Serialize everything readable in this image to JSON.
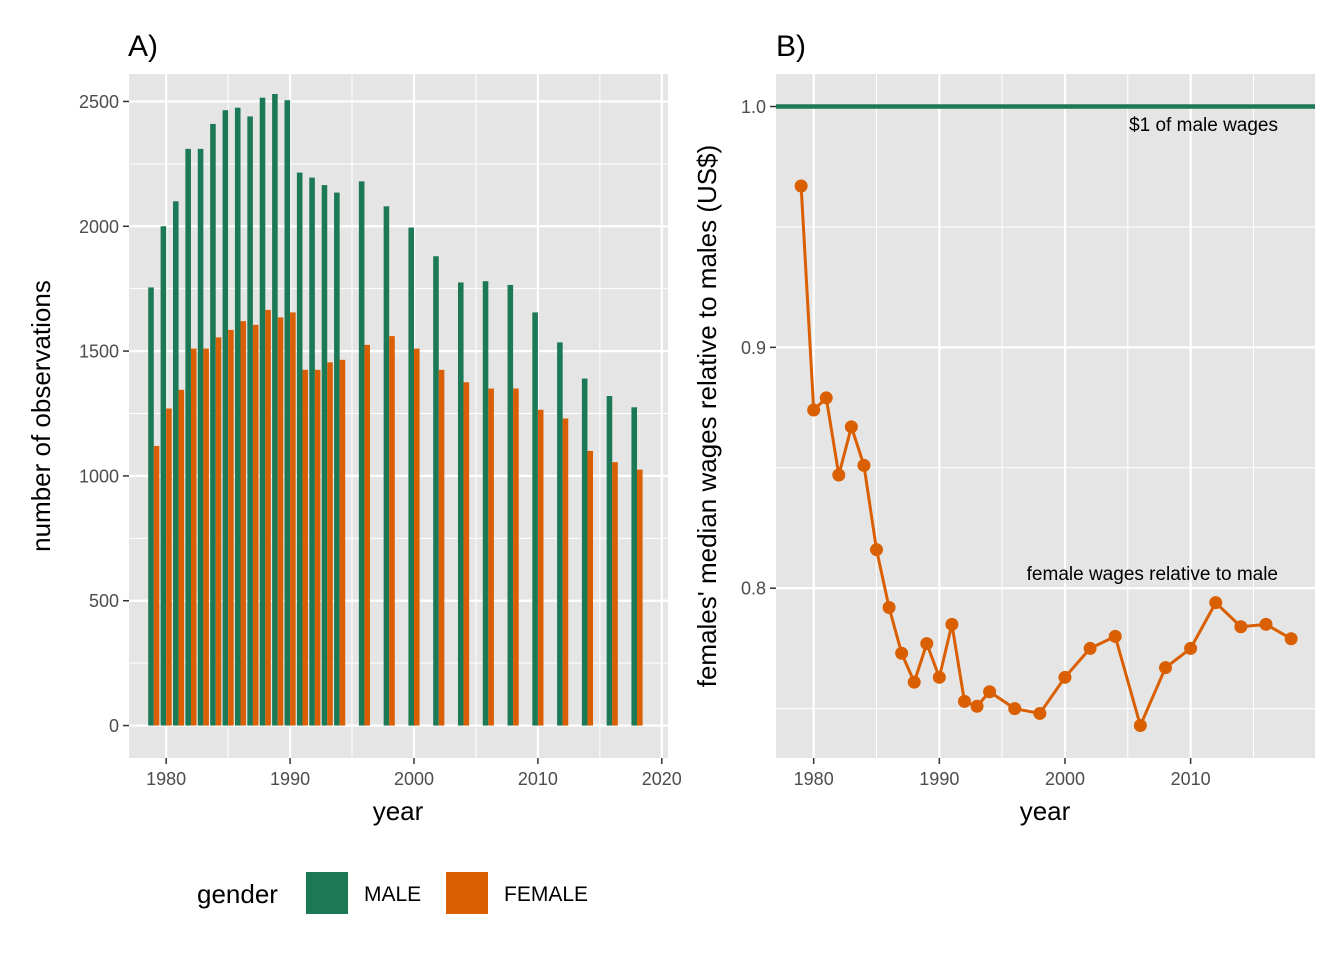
{
  "chart_data": [
    {
      "panel_label": "A)",
      "type": "bar",
      "xlabel": "year",
      "ylabel": "number of observations",
      "xlim": [
        1977,
        2020.5
      ],
      "ylim": [
        -130,
        2610
      ],
      "xticks": [
        1980,
        1990,
        2000,
        2010,
        2020
      ],
      "xtick_labels": [
        "1980",
        "1990",
        "2000",
        "2010",
        "2020"
      ],
      "yticks": [
        0,
        500,
        1000,
        1500,
        2000,
        2500
      ],
      "ytick_labels": [
        "0",
        "500",
        "1000",
        "1500",
        "2000",
        "2500"
      ],
      "x": [
        1979,
        1980,
        1981,
        1982,
        1983,
        1984,
        1985,
        1986,
        1987,
        1988,
        1989,
        1990,
        1991,
        1992,
        1993,
        1994,
        1996,
        1998,
        2000,
        2002,
        2004,
        2006,
        2008,
        2010,
        2012,
        2014,
        2016,
        2018
      ],
      "series": [
        {
          "name": "MALE",
          "color": "#1b7a55",
          "values": [
            1755,
            2000,
            2100,
            2310,
            2310,
            2410,
            2465,
            2475,
            2440,
            2515,
            2530,
            2505,
            2215,
            2195,
            2165,
            2135,
            2180,
            2080,
            1995,
            1880,
            1775,
            1780,
            1765,
            1655,
            1535,
            1390,
            1320,
            1275
          ]
        },
        {
          "name": "FEMALE",
          "color": "#d95f02",
          "values": [
            1120,
            1270,
            1345,
            1510,
            1510,
            1555,
            1585,
            1620,
            1605,
            1665,
            1635,
            1655,
            1425,
            1425,
            1455,
            1465,
            1525,
            1560,
            1510,
            1425,
            1375,
            1350,
            1350,
            1265,
            1230,
            1100,
            1055,
            1025
          ]
        }
      ],
      "legend": {
        "title": "gender",
        "position": "bottom",
        "entries": [
          "MALE",
          "FEMALE"
        ]
      },
      "grid": true
    },
    {
      "panel_label": "B)",
      "type": "line",
      "xlabel": "year",
      "ylabel": "females' median wages relative to males (US$)",
      "xlim": [
        1977,
        2019.9
      ],
      "ylim": [
        0.7295,
        1.0135
      ],
      "xticks": [
        1980,
        1990,
        2000,
        2010
      ],
      "xtick_labels": [
        "1980",
        "1990",
        "2000",
        "2010"
      ],
      "yticks": [
        0.8,
        0.9,
        1.0
      ],
      "ytick_labels": [
        "0.8",
        "0.9",
        "1.0"
      ],
      "reference_line": {
        "y": 1.0,
        "color": "#1b7a55",
        "label": "$1 of male wages"
      },
      "series": [
        {
          "color": "#d95f02",
          "x": [
            1979,
            1980,
            1981,
            1982,
            1983,
            1984,
            1985,
            1986,
            1987,
            1988,
            1989,
            1990,
            1991,
            1992,
            1993,
            1994,
            1996,
            1998,
            2000,
            2002,
            2004,
            2006,
            2008,
            2010,
            2012,
            2014,
            2016,
            2018
          ],
          "values": [
            0.967,
            0.874,
            0.879,
            0.847,
            0.867,
            0.851,
            0.816,
            0.792,
            0.773,
            0.761,
            0.777,
            0.763,
            0.785,
            0.753,
            0.751,
            0.757,
            0.75,
            0.748,
            0.763,
            0.775,
            0.78,
            0.743,
            0.767,
            0.775,
            0.794,
            0.784,
            0.785,
            0.779
          ]
        }
      ],
      "annotation": "female wages relative to male",
      "grid": true
    }
  ]
}
